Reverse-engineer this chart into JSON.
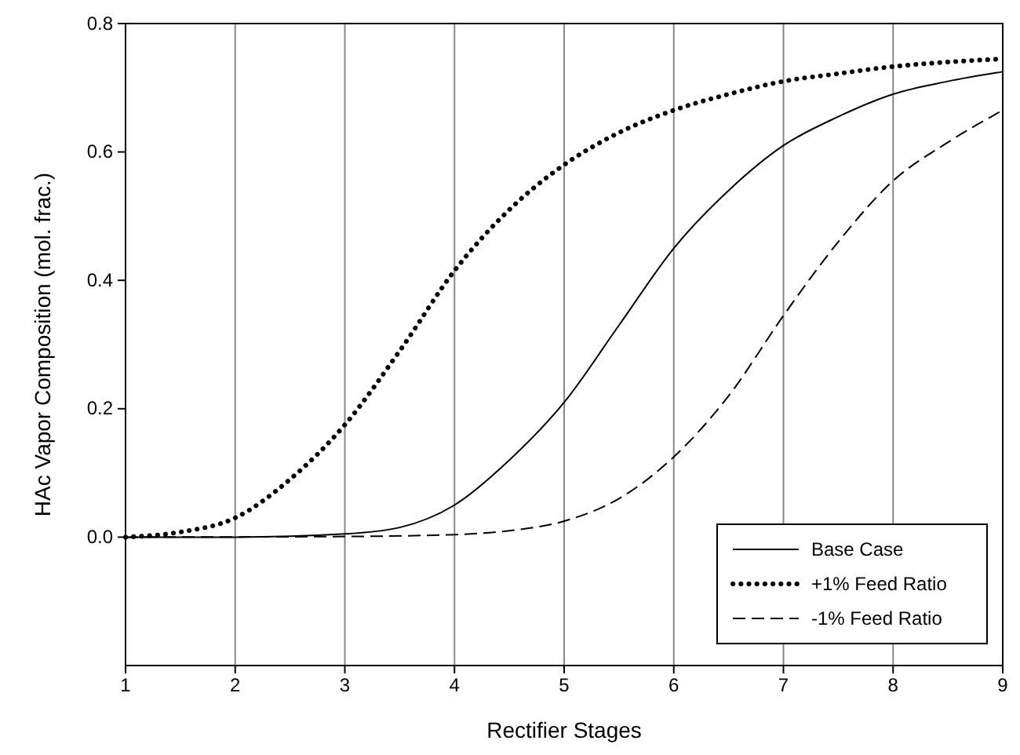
{
  "chart_data": {
    "type": "line",
    "xlabel": "Rectifier Stages",
    "ylabel": "HAc Vapor Composition (mol. frac.)",
    "xlim": [
      1,
      9
    ],
    "xticks": [
      1,
      2,
      3,
      4,
      5,
      6,
      7,
      8,
      9
    ],
    "ylim": [
      -0.2,
      0.8
    ],
    "yticks": [
      {
        "value": 0,
        "label": "0.0"
      },
      0.2,
      0.4,
      0.6,
      0.8
    ],
    "grid": "x",
    "legend": "bottom right",
    "series": [
      {
        "name": "Base Case",
        "color": "#000000",
        "line_style": "solid",
        "x": [
          1,
          2,
          3,
          3.5,
          4,
          4.5,
          5,
          5.5,
          6,
          6.5,
          7,
          7.5,
          8,
          8.5,
          9
        ],
        "values": [
          0,
          0,
          0.005,
          0.015,
          0.05,
          0.12,
          0.21,
          0.33,
          0.45,
          0.54,
          0.61,
          0.655,
          0.69,
          0.71,
          0.725
        ]
      },
      {
        "name": "+1% Feed Ratio",
        "color": "#000000",
        "line_style": "dotted",
        "x": [
          1,
          1.5,
          2,
          2.5,
          3,
          3.5,
          4,
          4.5,
          5,
          5.5,
          6,
          6.5,
          7,
          7.5,
          8,
          8.5,
          9
        ],
        "values": [
          0,
          0.008,
          0.03,
          0.09,
          0.175,
          0.29,
          0.415,
          0.51,
          0.58,
          0.63,
          0.665,
          0.69,
          0.71,
          0.722,
          0.733,
          0.74,
          0.745
        ]
      },
      {
        "name": "-1% Feed Ratio",
        "color": "#000000",
        "line_style": "dashed",
        "x": [
          1,
          3,
          4,
          4.5,
          5,
          5.5,
          6,
          6.5,
          7,
          7.5,
          8,
          8.5,
          9
        ],
        "values": [
          0,
          0.001,
          0.004,
          0.01,
          0.025,
          0.06,
          0.125,
          0.22,
          0.345,
          0.46,
          0.555,
          0.615,
          0.665
        ]
      }
    ]
  }
}
